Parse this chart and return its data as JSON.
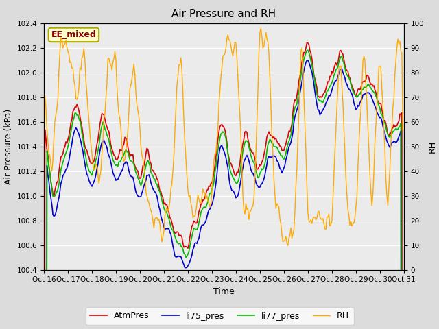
{
  "title": "Air Pressure and RH",
  "xlabel": "Time",
  "ylabel_left": "Air Pressure (kPa)",
  "ylabel_right": "RH",
  "station_label": "EE_mixed",
  "xlim": [
    0,
    360
  ],
  "ylim_left": [
    100.4,
    102.4
  ],
  "ylim_right": [
    0,
    100
  ],
  "yticks_left": [
    100.4,
    100.6,
    100.8,
    101.0,
    101.2,
    101.4,
    101.6,
    101.8,
    102.0,
    102.2,
    102.4
  ],
  "yticks_right": [
    0,
    10,
    20,
    30,
    40,
    50,
    60,
    70,
    80,
    90,
    100
  ],
  "xtick_labels": [
    "Oct 16",
    "Oct 17",
    "Oct 18",
    "Oct 19",
    "Oct 20",
    "Oct 21",
    "Oct 22",
    "Oct 23",
    "Oct 24",
    "Oct 25",
    "Oct 26",
    "Oct 27",
    "Oct 28",
    "Oct 29",
    "Oct 30",
    "Oct 31"
  ],
  "xtick_positions": [
    0,
    24,
    48,
    72,
    96,
    120,
    144,
    168,
    192,
    216,
    240,
    264,
    288,
    312,
    336,
    360
  ],
  "bg_color": "#dcdcdc",
  "plot_bg_color": "#ebebeb",
  "line_colors": {
    "AtmPres": "#dd0000",
    "li75_pres": "#0000cc",
    "li77_pres": "#00bb00",
    "RH": "#ffaa00"
  },
  "legend_entries": [
    "AtmPres",
    "li75_pres",
    "li77_pres",
    "RH"
  ]
}
